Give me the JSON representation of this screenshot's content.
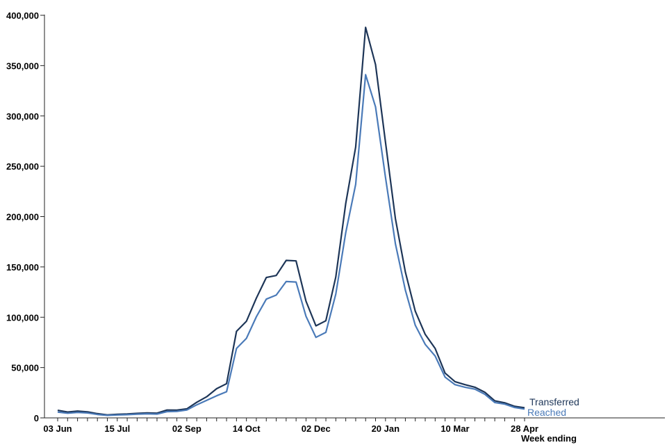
{
  "chart_data": {
    "type": "line",
    "xlabel": "Week ending",
    "ylabel": "",
    "ylim": [
      0,
      400000
    ],
    "y_ticks": [
      0,
      50000,
      100000,
      150000,
      200000,
      250000,
      300000,
      350000,
      400000
    ],
    "y_tick_labels": [
      "0",
      "50,000",
      "100,000",
      "150,000",
      "200,000",
      "250,000",
      "300,000",
      "350,000",
      "400,000"
    ],
    "x_tick_labels": [
      {
        "week": 1,
        "label": "03 Jun"
      },
      {
        "week": 7,
        "label": "15 Jul"
      },
      {
        "week": 14,
        "label": "02 Sep"
      },
      {
        "week": 20,
        "label": "14 Oct"
      },
      {
        "week": 27,
        "label": "02 Dec"
      },
      {
        "week": 34,
        "label": "20 Jan"
      },
      {
        "week": 41,
        "label": "10 Mar"
      },
      {
        "week": 48,
        "label": "28 Apr"
      }
    ],
    "x_range": [
      1,
      48
    ],
    "x_units": "week number (weekly from 03 Jun)",
    "x": [
      1,
      2,
      3,
      4,
      5,
      6,
      7,
      8,
      9,
      10,
      11,
      12,
      13,
      14,
      15,
      16,
      17,
      18,
      19,
      20,
      21,
      22,
      23,
      24,
      25,
      26,
      27,
      28,
      29,
      30,
      31,
      32,
      33,
      34,
      35,
      36,
      37,
      38,
      39,
      40,
      41,
      42,
      43,
      44,
      45,
      46,
      47,
      48
    ],
    "grid": false,
    "legend": "end-of-line labels",
    "series": [
      {
        "name": "Transferred",
        "color": "#1d3557",
        "values": [
          7500,
          5800,
          6800,
          6000,
          4200,
          3000,
          3500,
          3900,
          4500,
          5000,
          4700,
          7800,
          7700,
          9000,
          15500,
          21000,
          29000,
          34000,
          86000,
          96000,
          119000,
          139500,
          141500,
          156500,
          156000,
          116000,
          91500,
          96500,
          140000,
          213000,
          269000,
          388000,
          351000,
          274000,
          198000,
          145000,
          106000,
          83000,
          69000,
          44500,
          36000,
          33000,
          30500,
          25500,
          17000,
          15000,
          11500,
          10000
        ]
      },
      {
        "name": "Reached",
        "color": "#4a7ab8",
        "values": [
          5800,
          4600,
          5400,
          4900,
          3400,
          2500,
          2900,
          3200,
          3700,
          4100,
          3800,
          6200,
          6500,
          7800,
          13000,
          17500,
          22000,
          26000,
          69000,
          79000,
          100500,
          118000,
          122000,
          135500,
          135000,
          101000,
          80000,
          85000,
          123000,
          184000,
          232000,
          341000,
          309000,
          239000,
          173000,
          127000,
          92000,
          73000,
          61500,
          40500,
          33000,
          30500,
          28500,
          23500,
          15300,
          13700,
          10300,
          8800
        ]
      }
    ]
  }
}
